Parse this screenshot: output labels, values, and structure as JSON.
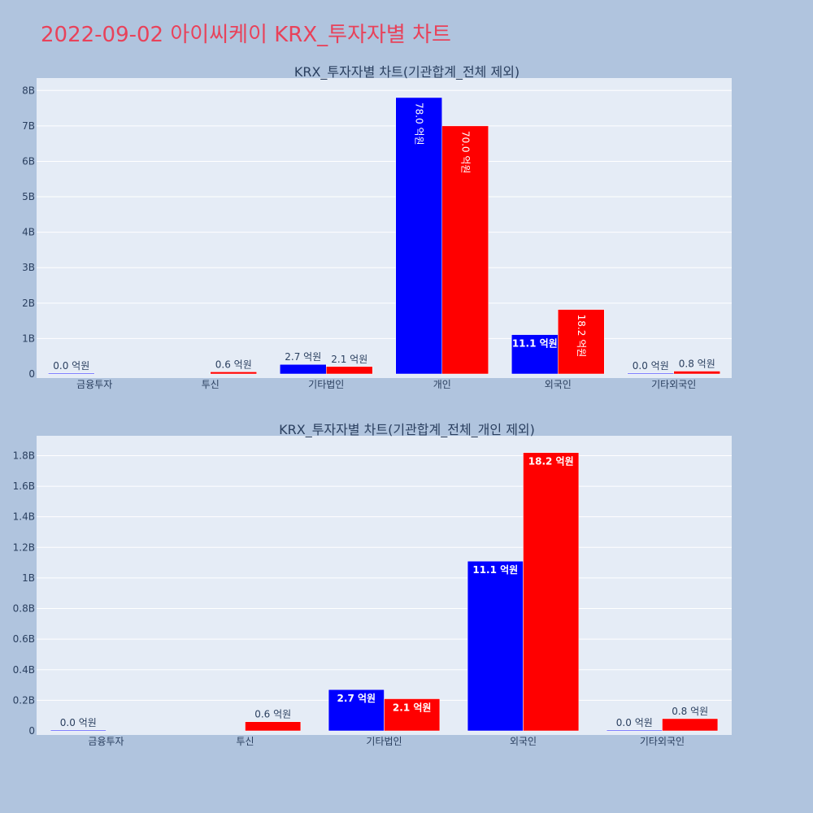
{
  "page": {
    "title": "2022-09-02 아이씨케이 KRX_투자자별 차트"
  },
  "colors": {
    "buy": "#0000ff",
    "sell": "#ff0000",
    "plot_bg": "#e5ecf6",
    "page_bg": "#b0c4de",
    "title": "#e8425a"
  },
  "chart_data": [
    {
      "type": "bar",
      "title": "KRX_투자자별 차트(기관합계_전체 제외)",
      "categories": [
        "금융투자",
        "투신",
        "기타법인",
        "개인",
        "외국인",
        "기타외국인"
      ],
      "series": [
        {
          "values": [
            0.0,
            null,
            0.27,
            7.8,
            1.11,
            0.0
          ],
          "labels": [
            "0.0 억원",
            "",
            "2.7 억원",
            "78.0 억원",
            "11.1 억원",
            "0.0 억원"
          ]
        },
        {
          "values": [
            null,
            0.06,
            0.21,
            7.0,
            1.82,
            0.08
          ],
          "labels": [
            "",
            "0.6 억원",
            "2.1 억원",
            "70.0 억원",
            "18.2 억원",
            "0.8 억원"
          ]
        }
      ],
      "yticks": [
        "0",
        "1B",
        "2B",
        "3B",
        "4B",
        "5B",
        "6B",
        "7B",
        "8B"
      ],
      "ylim": [
        0,
        8.35
      ],
      "grid": true,
      "legend": "none"
    },
    {
      "type": "bar",
      "title": "KRX_투자자별 차트(기관합계_전체_개인 제외)",
      "categories": [
        "금융투자",
        "투신",
        "기타법인",
        "외국인",
        "기타외국인"
      ],
      "series": [
        {
          "values": [
            0.0,
            null,
            0.27,
            1.11,
            0.0
          ],
          "labels": [
            "0.0 억원",
            "",
            "2.7 억원",
            "11.1 억원",
            "0.0 억원"
          ]
        },
        {
          "values": [
            null,
            0.06,
            0.21,
            1.82,
            0.08
          ],
          "labels": [
            "",
            "0.6 억원",
            "2.1 억원",
            "18.2 억원",
            "0.8 억원"
          ]
        }
      ],
      "yticks": [
        "0",
        "0.2B",
        "0.4B",
        "0.6B",
        "0.8B",
        "1B",
        "1.2B",
        "1.4B",
        "1.6B",
        "1.8B"
      ],
      "ylim": [
        0,
        1.93
      ],
      "grid": true,
      "legend": "none"
    }
  ]
}
